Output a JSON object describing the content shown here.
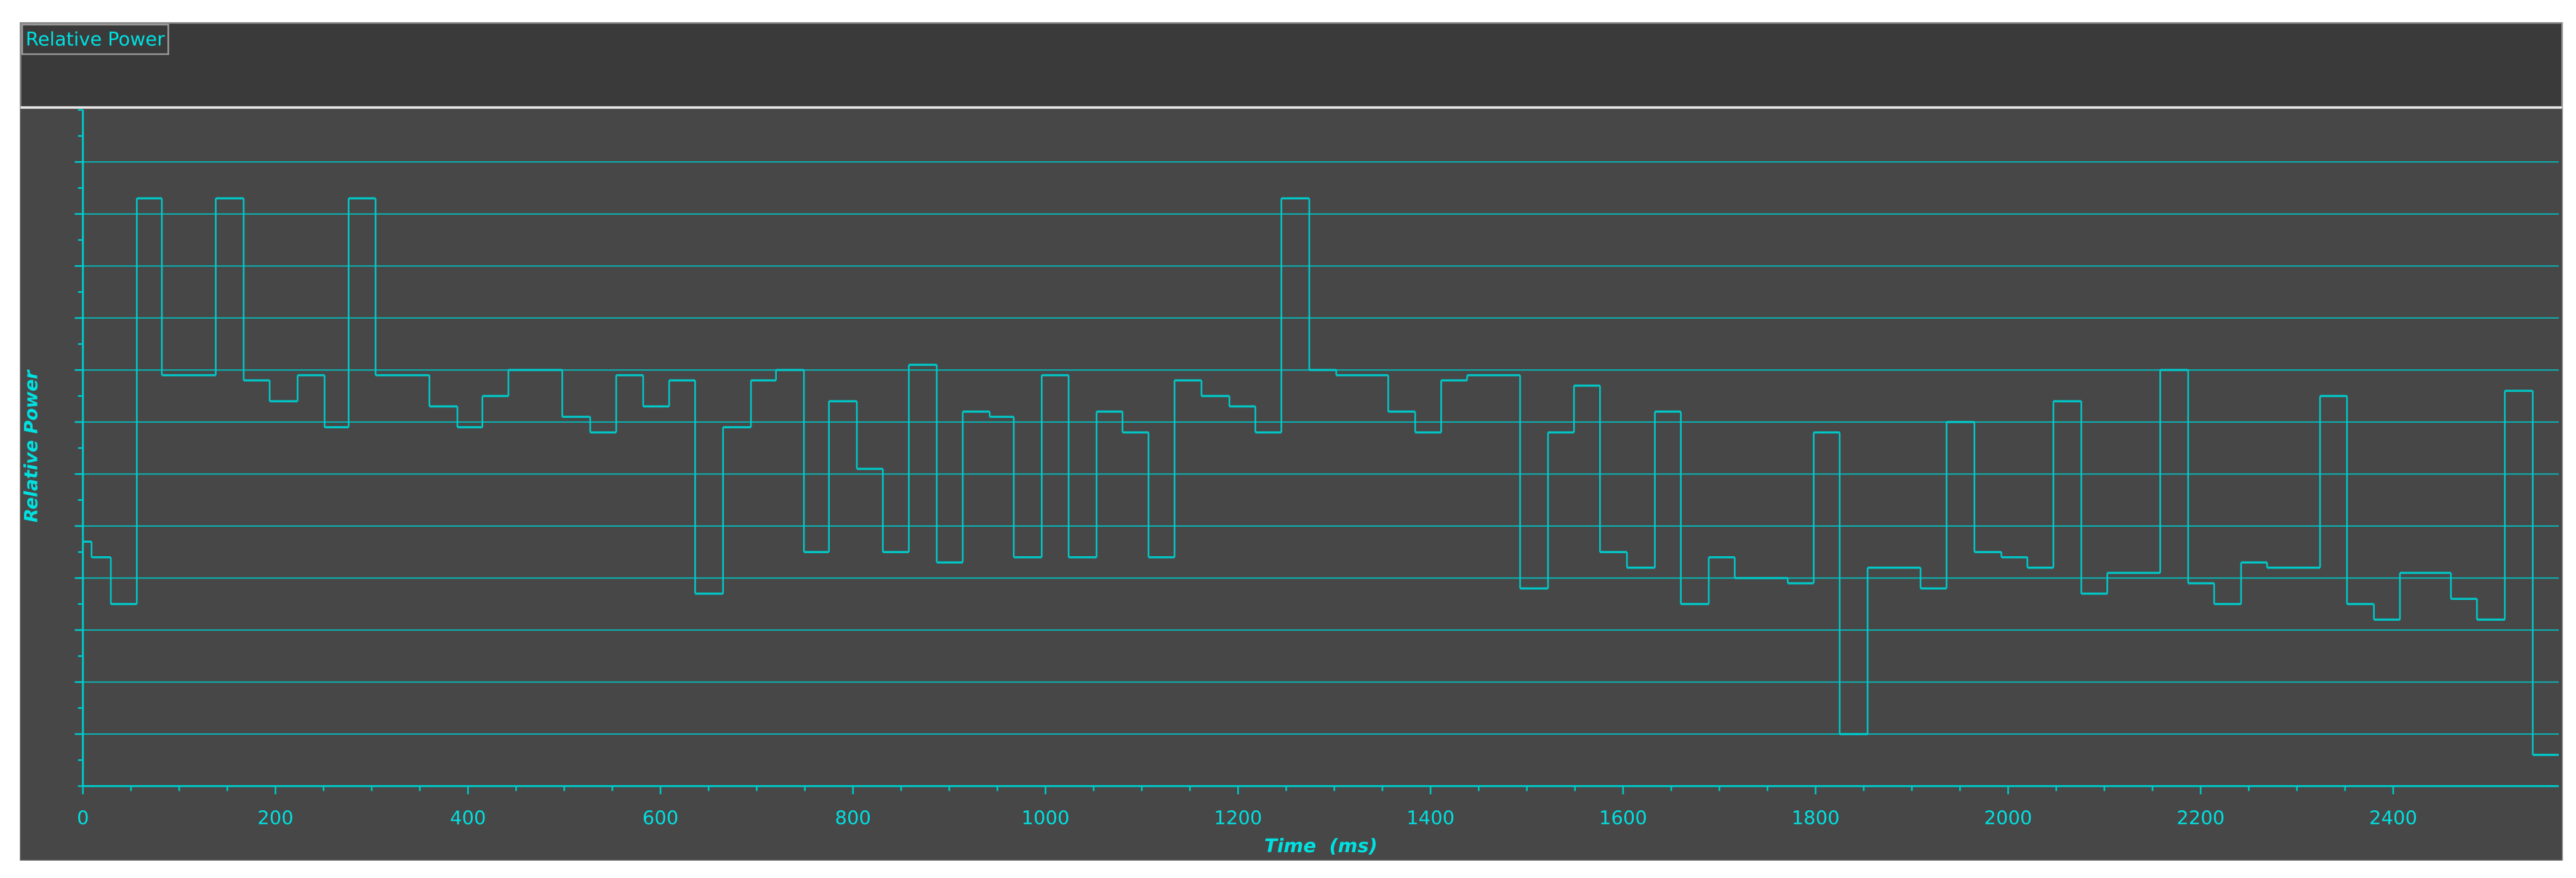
{
  "tab_label": "Relative Power",
  "chart_data": {
    "type": "line",
    "step": "post",
    "x_label": "Time  (ms)",
    "y_label": "Relative Power",
    "color": "#00c8c8",
    "xlim": [
      0,
      2572
    ],
    "xticks": [
      0,
      200,
      400,
      600,
      800,
      1000,
      1200,
      1400,
      1600,
      1800,
      2000,
      2200,
      2400
    ],
    "ylim": [
      0,
      13
    ],
    "ygrid": [
      1,
      2,
      3,
      4,
      5,
      6,
      7,
      8,
      9,
      10,
      11,
      12
    ],
    "x": [
      0,
      9,
      29,
      56,
      82,
      138,
      167,
      194,
      223,
      251,
      276,
      304,
      360,
      389,
      415,
      442,
      498,
      527,
      554,
      582,
      609,
      636,
      665,
      694,
      720,
      749,
      775,
      804,
      831,
      858,
      887,
      914,
      942,
      967,
      996,
      1024,
      1053,
      1080,
      1107,
      1134,
      1162,
      1191,
      1218,
      1245,
      1274,
      1302,
      1356,
      1384,
      1411,
      1438,
      1493,
      1522,
      1549,
      1576,
      1604,
      1633,
      1660,
      1689,
      1716,
      1771,
      1798,
      1825,
      1854,
      1909,
      1936,
      1965,
      1993,
      2020,
      2047,
      2076,
      2103,
      2158,
      2187,
      2214,
      2242,
      2269,
      2324,
      2352,
      2380,
      2407,
      2460,
      2487,
      2516,
      2545
    ],
    "values": [
      4.7,
      4.4,
      3.5,
      11.3,
      7.9,
      11.3,
      7.8,
      7.4,
      7.9,
      6.9,
      11.3,
      7.9,
      7.3,
      6.9,
      7.5,
      8.0,
      7.1,
      6.8,
      7.9,
      7.3,
      7.8,
      3.7,
      6.9,
      7.8,
      8.0,
      4.5,
      7.4,
      6.1,
      4.5,
      8.1,
      4.3,
      7.2,
      7.1,
      4.4,
      7.9,
      4.4,
      7.2,
      6.8,
      4.4,
      7.8,
      7.5,
      7.3,
      6.8,
      11.3,
      8.0,
      7.9,
      7.2,
      6.8,
      7.8,
      7.9,
      3.8,
      6.8,
      7.7,
      4.5,
      4.2,
      7.2,
      3.5,
      4.4,
      4.0,
      3.9,
      6.8,
      1.0,
      4.2,
      3.8,
      7.0,
      4.5,
      4.4,
      4.2,
      7.4,
      3.7,
      4.1,
      8.0,
      3.9,
      3.5,
      4.3,
      4.2,
      7.5,
      3.5,
      3.2,
      4.1,
      3.6,
      3.2,
      7.6,
      0.6
    ]
  }
}
